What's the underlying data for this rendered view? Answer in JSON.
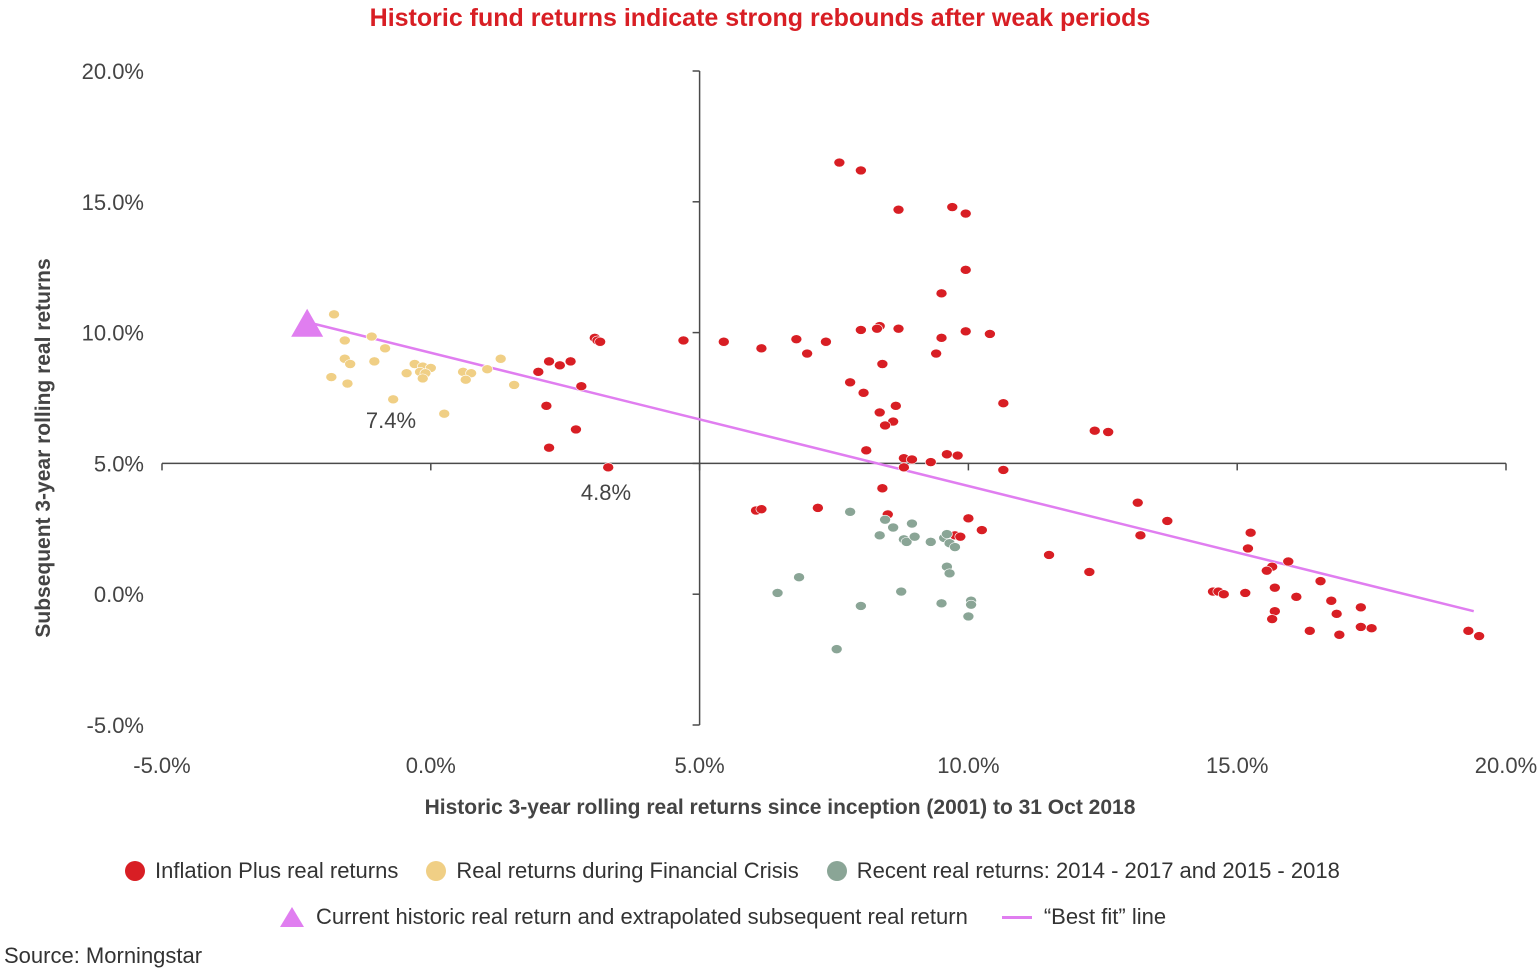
{
  "chart_data": {
    "type": "scatter",
    "title": "Historic fund returns indicate strong rebounds after weak periods",
    "xlabel": "Historic 3-year rolling real returns since inception (2001) to 31 Oct 2018",
    "ylabel": "Subsequent 3-year rolling real returns",
    "xlim": [
      -5.0,
      20.0
    ],
    "ylim": [
      -5.0,
      20.0
    ],
    "x_ticks": [
      "-5.0%",
      "0.0%",
      "5.0%",
      "10.0%",
      "15.0%",
      "20.0%"
    ],
    "y_ticks": [
      "20.0%",
      "15.0%",
      "10.0%",
      "5.0%",
      "0.0%",
      "-5.0%"
    ],
    "grid": false,
    "annotations": [
      "7.4%",
      "4.8%"
    ],
    "source": "Source: Morningstar",
    "series": [
      {
        "name": "Inflation Plus real returns",
        "color": "#d81e24",
        "points": [
          [
            7.6,
            16.5
          ],
          [
            8.0,
            16.2
          ],
          [
            8.7,
            14.7
          ],
          [
            9.7,
            14.8
          ],
          [
            9.95,
            14.55
          ],
          [
            9.95,
            12.4
          ],
          [
            9.5,
            11.5
          ],
          [
            8.35,
            10.25
          ],
          [
            8.3,
            10.15
          ],
          [
            8.0,
            10.1
          ],
          [
            8.7,
            10.15
          ],
          [
            9.95,
            10.05
          ],
          [
            10.4,
            9.95
          ],
          [
            9.5,
            9.8
          ],
          [
            6.8,
            9.75
          ],
          [
            7.35,
            9.65
          ],
          [
            4.7,
            9.7
          ],
          [
            5.45,
            9.65
          ],
          [
            6.15,
            9.4
          ],
          [
            7.0,
            9.2
          ],
          [
            9.4,
            9.2
          ],
          [
            8.4,
            8.8
          ],
          [
            3.05,
            9.8
          ],
          [
            3.1,
            9.7
          ],
          [
            3.15,
            9.65
          ],
          [
            2.6,
            8.9
          ],
          [
            2.2,
            8.9
          ],
          [
            2.4,
            8.75
          ],
          [
            2.0,
            8.5
          ],
          [
            2.8,
            7.95
          ],
          [
            7.8,
            8.1
          ],
          [
            8.05,
            7.7
          ],
          [
            10.65,
            7.3
          ],
          [
            8.65,
            7.2
          ],
          [
            8.35,
            6.95
          ],
          [
            8.6,
            6.6
          ],
          [
            8.45,
            6.45
          ],
          [
            2.15,
            7.2
          ],
          [
            2.7,
            6.3
          ],
          [
            12.35,
            6.25
          ],
          [
            12.6,
            6.2
          ],
          [
            2.2,
            5.6
          ],
          [
            8.1,
            5.5
          ],
          [
            9.6,
            5.35
          ],
          [
            9.8,
            5.3
          ],
          [
            8.8,
            5.2
          ],
          [
            8.95,
            5.15
          ],
          [
            9.3,
            5.05
          ],
          [
            8.8,
            4.85
          ],
          [
            3.3,
            4.85
          ],
          [
            10.65,
            4.75
          ],
          [
            8.4,
            4.05
          ],
          [
            13.15,
            3.5
          ],
          [
            8.5,
            3.05
          ],
          [
            6.05,
            3.2
          ],
          [
            6.15,
            3.25
          ],
          [
            7.2,
            3.3
          ],
          [
            10.0,
            2.9
          ],
          [
            13.7,
            2.8
          ],
          [
            10.25,
            2.45
          ],
          [
            15.25,
            2.35
          ],
          [
            9.75,
            2.25
          ],
          [
            9.85,
            2.2
          ],
          [
            13.2,
            2.25
          ],
          [
            15.2,
            1.75
          ],
          [
            11.5,
            1.5
          ],
          [
            15.95,
            1.25
          ],
          [
            15.65,
            1.05
          ],
          [
            15.55,
            0.9
          ],
          [
            12.25,
            0.85
          ],
          [
            16.55,
            0.5
          ],
          [
            15.7,
            0.25
          ],
          [
            14.55,
            0.1
          ],
          [
            14.65,
            0.1
          ],
          [
            14.75,
            0.0
          ],
          [
            15.15,
            0.05
          ],
          [
            16.1,
            -0.1
          ],
          [
            16.75,
            -0.25
          ],
          [
            15.7,
            -0.65
          ],
          [
            16.85,
            -0.75
          ],
          [
            17.3,
            -0.5
          ],
          [
            15.65,
            -0.95
          ],
          [
            16.35,
            -1.4
          ],
          [
            17.3,
            -1.25
          ],
          [
            17.5,
            -1.3
          ],
          [
            16.9,
            -1.55
          ],
          [
            19.3,
            -1.4
          ],
          [
            19.5,
            -1.6
          ]
        ]
      },
      {
        "name": "Real returns during Financial Crisis",
        "color": "#f0cf85",
        "points": [
          [
            -1.8,
            10.7
          ],
          [
            -1.1,
            9.85
          ],
          [
            -1.6,
            9.7
          ],
          [
            -0.85,
            9.4
          ],
          [
            -1.6,
            9.0
          ],
          [
            -1.5,
            8.8
          ],
          [
            -1.05,
            8.9
          ],
          [
            -0.3,
            8.8
          ],
          [
            -0.15,
            8.7
          ],
          [
            0.0,
            8.65
          ],
          [
            -0.2,
            8.5
          ],
          [
            -0.1,
            8.45
          ],
          [
            -0.45,
            8.45
          ],
          [
            -0.15,
            8.25
          ],
          [
            0.6,
            8.5
          ],
          [
            0.75,
            8.45
          ],
          [
            1.05,
            8.6
          ],
          [
            1.3,
            9.0
          ],
          [
            0.65,
            8.2
          ],
          [
            -1.85,
            8.3
          ],
          [
            -1.55,
            8.05
          ],
          [
            1.55,
            8.0
          ],
          [
            -0.7,
            7.45
          ],
          [
            0.25,
            6.9
          ]
        ]
      },
      {
        "name": "Recent real returns: 2014 - 2017 and 2015 - 2018",
        "color": "#8aa596",
        "points": [
          [
            7.8,
            3.15
          ],
          [
            8.45,
            2.85
          ],
          [
            8.6,
            2.55
          ],
          [
            8.95,
            2.7
          ],
          [
            8.35,
            2.25
          ],
          [
            8.8,
            2.1
          ],
          [
            8.85,
            2.0
          ],
          [
            9.0,
            2.2
          ],
          [
            9.3,
            2.0
          ],
          [
            9.55,
            2.15
          ],
          [
            9.6,
            2.3
          ],
          [
            9.65,
            1.95
          ],
          [
            9.75,
            1.8
          ],
          [
            9.6,
            1.05
          ],
          [
            9.65,
            0.8
          ],
          [
            6.85,
            0.65
          ],
          [
            6.45,
            0.05
          ],
          [
            8.75,
            0.1
          ],
          [
            10.05,
            -0.25
          ],
          [
            10.05,
            -0.4
          ],
          [
            8.0,
            -0.45
          ],
          [
            9.5,
            -0.35
          ],
          [
            10.0,
            -0.85
          ],
          [
            7.55,
            -2.1
          ]
        ]
      },
      {
        "name": "Current historic real return and extrapolated subsequent real return",
        "color": "#e07ef0",
        "points": [
          [
            -2.3,
            10.3
          ]
        ]
      },
      {
        "name": "“Best fit” line",
        "color": "#e07ef0",
        "type": "line",
        "points": [
          [
            -2.3,
            10.4
          ],
          [
            19.4,
            -0.65
          ]
        ]
      }
    ]
  },
  "legend": {
    "item_inflation": "Inflation Plus real returns",
    "item_crisis": "Real returns during Financial Crisis",
    "item_recent": "Recent real returns: 2014 - 2017 and 2015 - 2018",
    "item_current": "Current historic real return and extrapolated subsequent real return",
    "item_bestfit": "“Best fit” line"
  }
}
